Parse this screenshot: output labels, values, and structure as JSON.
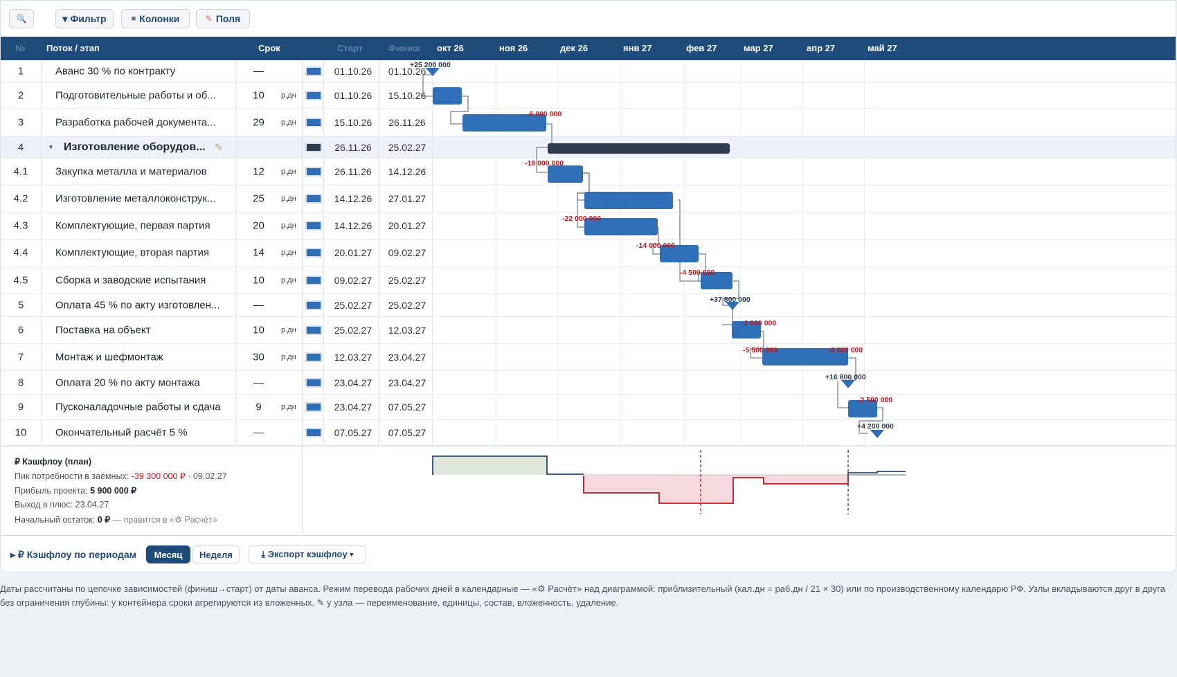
{
  "toolbar": {
    "search_icon": "🔍",
    "filter": "▾ Фильтр",
    "columns_icon": "■",
    "columns": "Колонки",
    "fields_icon": "✎",
    "fields": "Поля"
  },
  "header": {
    "num": "№",
    "name": "Поток / этап",
    "duration": "Срок",
    "start": "Старт",
    "finish": "Финиш",
    "months": [
      "окт 26",
      "ноя 26",
      "дек 26",
      "янв 27",
      "фев 27",
      "мар 27",
      "апр 27",
      "май 27"
    ]
  },
  "rows": [
    {
      "num": "1",
      "name": "Аванс 30 % по контракту",
      "duration": "—",
      "unit": "",
      "start": "01.10.26",
      "finish": "01.10.26"
    },
    {
      "num": "2",
      "name": "Подготовительные работы и об...",
      "duration": "10",
      "unit": "р.дн",
      "start": "01.10.26",
      "finish": "15.10.26"
    },
    {
      "num": "3",
      "name": "Разработка рабочей документа...",
      "duration": "29",
      "unit": "р.дн",
      "start": "15.10.26",
      "finish": "26.11.26"
    },
    {
      "num": "4",
      "name": "Изготовление оборудов...",
      "duration": "",
      "unit": "",
      "start": "26.11.26",
      "finish": "25.02.27",
      "group": true,
      "caret": "▾",
      "edit_icon": "✎"
    },
    {
      "num": "4.1",
      "name": "Закупка металла и материалов",
      "duration": "12",
      "unit": "р.дн",
      "start": "26.11.26",
      "finish": "14.12.26"
    },
    {
      "num": "4.2",
      "name": "Изготовление металлоконструк...",
      "duration": "25",
      "unit": "р.дн",
      "start": "14.12.26",
      "finish": "27.01.27"
    },
    {
      "num": "4.3",
      "name": "Комплектующие, первая партия",
      "duration": "20",
      "unit": "р.дн",
      "start": "14.12.26",
      "finish": "20.01.27"
    },
    {
      "num": "4.4",
      "name": "Комплектующие, вторая партия",
      "duration": "14",
      "unit": "р.дн",
      "start": "20.01.27",
      "finish": "09.02.27"
    },
    {
      "num": "4.5",
      "name": "Сборка и заводские испытания",
      "duration": "10",
      "unit": "р.дн",
      "start": "09.02.27",
      "finish": "25.02.27"
    },
    {
      "num": "5",
      "name": "Оплата 45 % по акту изготовлен...",
      "duration": "—",
      "unit": "",
      "start": "25.02.27",
      "finish": "25.02.27"
    },
    {
      "num": "6",
      "name": "Поставка на объект",
      "duration": "10",
      "unit": "р.дн",
      "start": "25.02.27",
      "finish": "12.03.27"
    },
    {
      "num": "7",
      "name": "Монтаж и шефмонтаж",
      "duration": "30",
      "unit": "р.дн",
      "start": "12.03.27",
      "finish": "23.04.27"
    },
    {
      "num": "8",
      "name": "Оплата 20 % по акту монтажа",
      "duration": "—",
      "unit": "",
      "start": "23.04.27",
      "finish": "23.04.27"
    },
    {
      "num": "9",
      "name": "Пусконаладочные работы и сдача",
      "duration": "9",
      "unit": "р.дн",
      "start": "23.04.27",
      "finish": "07.05.27"
    },
    {
      "num": "10",
      "name": "Окончательный расчёт 5 %",
      "duration": "—",
      "unit": "",
      "start": "07.05.27",
      "finish": "07.05.27"
    }
  ],
  "gantt_labels": [
    "+25 200 000",
    "-6 000 000",
    "-18 000 000",
    "-22 000 000",
    "-14 000 000",
    "-4 500 000",
    "+37 800 000",
    "-2 600 000",
    "-5 500 000",
    "-3 000 000",
    "+16 800 000",
    "-2 500 000",
    "+4 200 000"
  ],
  "cashflow": {
    "title": "₽ Кэшфлоу (план)",
    "peak_label": "Пик потребности в заёмных: ",
    "peak_value": "-39 300 000 ₽",
    "peak_date": " · 09.02.27",
    "profit_label": "Прибыль проекта: ",
    "profit_value": "5 900 000 ₽",
    "breakeven": "Выход в плюс: 23.04.27",
    "balance_label": "Начальный остаток: ",
    "balance_value": "0 ₽",
    "balance_hint": " — правится в «⚙ Расчёт»"
  },
  "bottom": {
    "periods": "▸ ₽ Кэшфлоу по периодам",
    "month": "Месяц",
    "week": "Неделя",
    "export": "⤓ Экспорт кэшфлоу ▾"
  },
  "footnote": "Даты рассчитаны по цепочке зависимостей (финиш→старт) от даты аванса. Режим перевода рабочих дней в календарные — «⚙ Расчёт» над диаграммой: приблизительный (кал.дн = раб.дн / 21 × 30) или по производственному календарю РФ. Узлы вкладываются друг в друга без ограничения глубины: у контейнера сроки агрегируются из вложенных. ✎ у узла — переименование, единицы, состав, вложенность, удаление.",
  "colors": {
    "header": "#1e4b7a",
    "bar": "#2f6fb7",
    "group_bar": "#2f3e4e",
    "negative": "#c0171e",
    "positive": "#2b3a4a"
  }
}
